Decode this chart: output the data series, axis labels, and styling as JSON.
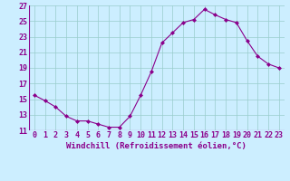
{
  "x": [
    0,
    1,
    2,
    3,
    4,
    5,
    6,
    7,
    8,
    9,
    10,
    11,
    12,
    13,
    14,
    15,
    16,
    17,
    18,
    19,
    20,
    21,
    22,
    23
  ],
  "y": [
    15.5,
    14.8,
    14.0,
    12.8,
    12.2,
    12.2,
    11.8,
    11.4,
    11.4,
    12.8,
    15.5,
    18.5,
    22.2,
    23.5,
    24.8,
    25.2,
    26.5,
    25.8,
    25.2,
    24.8,
    22.5,
    20.5,
    19.5,
    19.0
  ],
  "line_color": "#8B008B",
  "marker": "D",
  "marker_size": 2,
  "bg_color": "#cceeff",
  "grid_color": "#99cccc",
  "xlabel": "Windchill (Refroidissement éolien,°C)",
  "xlabel_color": "#8B008B",
  "xlabel_fontsize": 6.5,
  "tick_color": "#8B008B",
  "tick_fontsize": 6,
  "ylim": [
    11,
    27
  ],
  "xlim": [
    -0.5,
    23.5
  ],
  "yticks": [
    11,
    13,
    15,
    17,
    19,
    21,
    23,
    25,
    27
  ],
  "xticks": [
    0,
    1,
    2,
    3,
    4,
    5,
    6,
    7,
    8,
    9,
    10,
    11,
    12,
    13,
    14,
    15,
    16,
    17,
    18,
    19,
    20,
    21,
    22,
    23
  ]
}
